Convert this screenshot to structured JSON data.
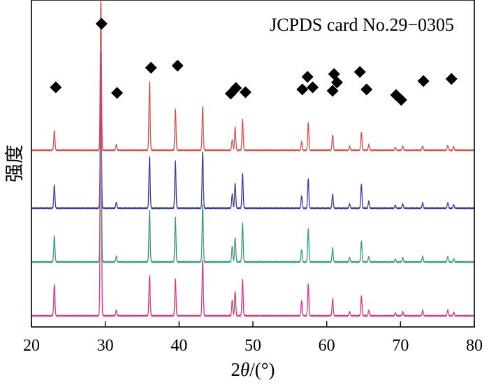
{
  "chart_data": {
    "type": "line",
    "title": "",
    "xlabel": "2θ/(°)",
    "xlabel_parts": {
      "prefix": "2",
      "theta": "θ",
      "suffix": "/(°)"
    },
    "ylabel": "强度",
    "annotation": "JCPDS card No.29−0305",
    "xlim": [
      20,
      80
    ],
    "xticks": [
      20,
      30,
      40,
      50,
      60,
      70,
      80
    ],
    "y_axis": "intensity (arbitrary units, stacked patterns, no tick labels)",
    "grid": false,
    "legend": "none",
    "series": [
      {
        "color": "#d9534f",
        "baseline": 0.0,
        "peaks": [
          [
            23.1,
            28
          ],
          [
            29.4,
            220
          ],
          [
            31.5,
            8
          ],
          [
            36.0,
            98
          ],
          [
            39.5,
            60
          ],
          [
            43.2,
            62
          ],
          [
            47.2,
            15
          ],
          [
            47.6,
            33
          ],
          [
            48.6,
            45
          ],
          [
            56.6,
            12
          ],
          [
            57.5,
            40
          ],
          [
            60.8,
            22
          ],
          [
            63.1,
            6
          ],
          [
            64.7,
            26
          ],
          [
            65.7,
            8
          ],
          [
            69.3,
            4
          ],
          [
            70.3,
            6
          ],
          [
            73.0,
            6
          ],
          [
            76.4,
            7
          ],
          [
            77.2,
            5
          ]
        ]
      },
      {
        "color": "#3d3d9e",
        "baseline": 0.0,
        "peaks": [
          [
            23.1,
            33
          ],
          [
            29.4,
            190
          ],
          [
            31.5,
            8
          ],
          [
            36.0,
            74
          ],
          [
            39.5,
            68
          ],
          [
            43.2,
            80
          ],
          [
            47.2,
            20
          ],
          [
            47.6,
            35
          ],
          [
            48.6,
            50
          ],
          [
            56.6,
            18
          ],
          [
            57.5,
            42
          ],
          [
            60.8,
            20
          ],
          [
            63.1,
            6
          ],
          [
            64.7,
            34
          ],
          [
            65.7,
            10
          ],
          [
            69.3,
            4
          ],
          [
            70.3,
            6
          ],
          [
            73.0,
            8
          ],
          [
            76.4,
            8
          ],
          [
            77.2,
            5
          ]
        ]
      },
      {
        "color": "#3a9a85",
        "baseline": 0.0,
        "peaks": [
          [
            23.1,
            37
          ],
          [
            29.4,
            270
          ],
          [
            31.5,
            8
          ],
          [
            36.0,
            74
          ],
          [
            39.5,
            64
          ],
          [
            43.2,
            82
          ],
          [
            47.2,
            22
          ],
          [
            47.6,
            35
          ],
          [
            48.6,
            56
          ],
          [
            56.6,
            18
          ],
          [
            57.5,
            47
          ],
          [
            60.8,
            20
          ],
          [
            63.1,
            6
          ],
          [
            64.7,
            30
          ],
          [
            65.7,
            8
          ],
          [
            69.3,
            4
          ],
          [
            70.3,
            6
          ],
          [
            73.0,
            8
          ],
          [
            76.4,
            8
          ],
          [
            77.2,
            5
          ]
        ]
      },
      {
        "color": "#d63a86",
        "baseline": 0.0,
        "peaks": [
          [
            23.1,
            45
          ],
          [
            29.4,
            380
          ],
          [
            31.5,
            8
          ],
          [
            36.0,
            58
          ],
          [
            39.5,
            53
          ],
          [
            43.2,
            80
          ],
          [
            47.2,
            22
          ],
          [
            47.6,
            35
          ],
          [
            48.6,
            52
          ],
          [
            56.6,
            22
          ],
          [
            57.5,
            45
          ],
          [
            60.8,
            24
          ],
          [
            63.1,
            6
          ],
          [
            64.7,
            28
          ],
          [
            65.7,
            8
          ],
          [
            69.3,
            4
          ],
          [
            70.3,
            6
          ],
          [
            73.0,
            8
          ],
          [
            76.4,
            8
          ],
          [
            77.2,
            5
          ]
        ]
      }
    ],
    "reference_markers": {
      "symbol": "diamond",
      "x": [
        23.3,
        29.5,
        31.6,
        36.2,
        39.8,
        47.0,
        47.7,
        49.0,
        56.7,
        57.4,
        58.1,
        60.8,
        61.0,
        61.4,
        64.5,
        65.4,
        69.4,
        70.1,
        73.1,
        76.9
      ]
    }
  }
}
